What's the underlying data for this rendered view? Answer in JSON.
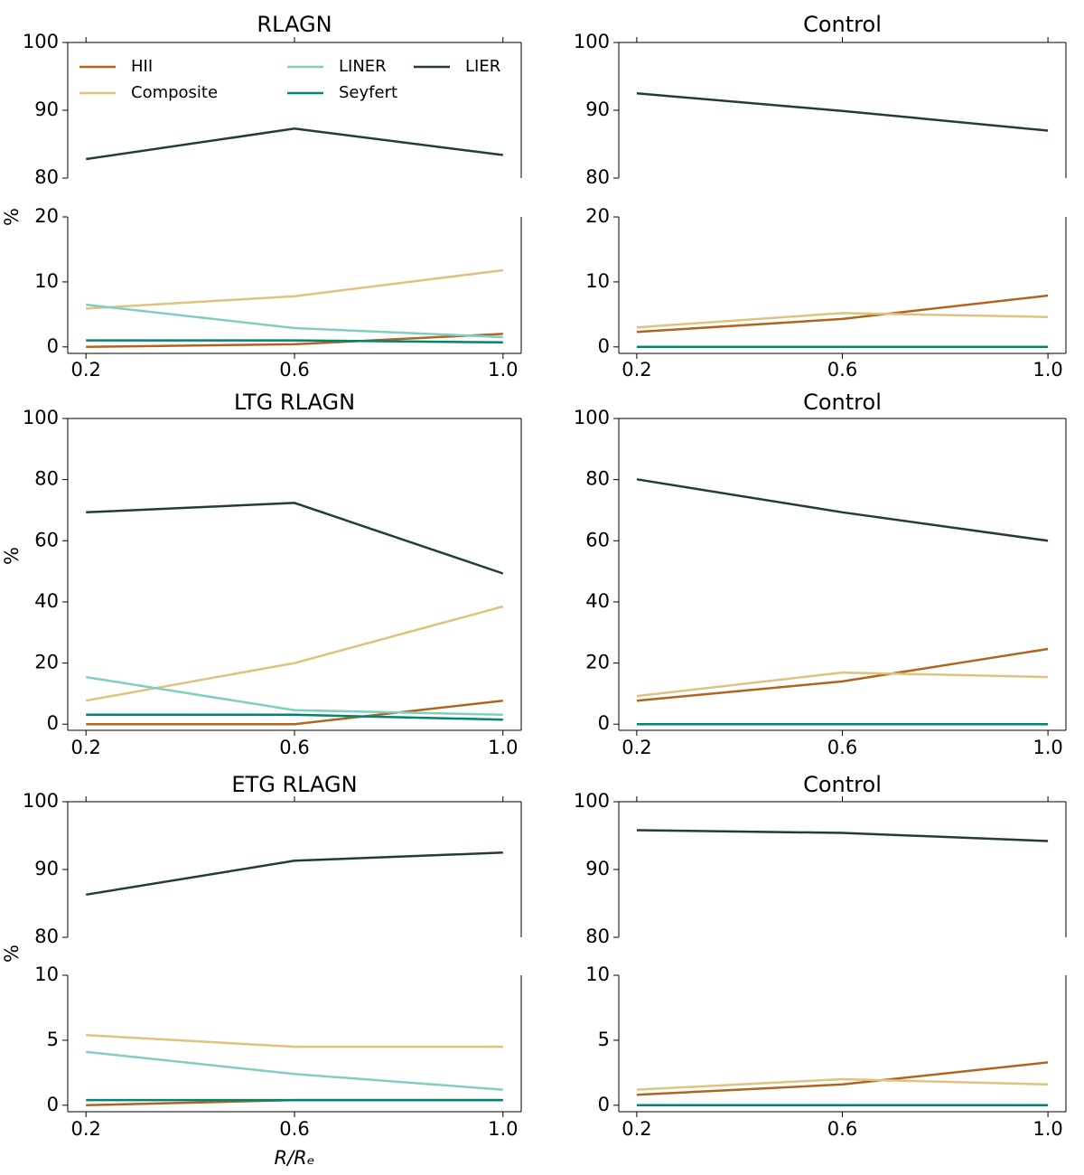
{
  "chart_data": [
    {
      "type": "line",
      "title": "RLAGN",
      "ylabel": "%",
      "legend": "upper left",
      "broken_axis": true,
      "x": [
        0.2,
        0.6,
        1.0
      ],
      "xlim": [
        0.165,
        1.035
      ],
      "xticks": [
        0.2,
        0.6,
        {
          "value": 1.0,
          "label": "1.0"
        }
      ],
      "ylim": [
        -1,
        20
      ],
      "yticks": [
        0,
        10,
        20
      ],
      "y2lim": [
        80,
        100
      ],
      "y2ticks": [
        80,
        90,
        100
      ],
      "series": [
        {
          "name": "HII",
          "color": "#b0651e",
          "values": [
            0.0,
            0.4,
            2.0
          ]
        },
        {
          "name": "Composite",
          "color": "#dfc27d",
          "values": [
            5.9,
            7.8,
            11.8
          ]
        },
        {
          "name": "LINER",
          "color": "#80cdc1",
          "values": [
            6.5,
            2.9,
            1.5
          ]
        },
        {
          "name": "Seyfert",
          "color": "#018571",
          "values": [
            1.0,
            1.0,
            0.7
          ]
        },
        {
          "name": "LIER",
          "color": "#233d36",
          "axis": "y2",
          "values": [
            82.8,
            87.3,
            83.4
          ]
        }
      ]
    },
    {
      "type": "line",
      "title": "Control",
      "broken_axis": true,
      "x": [
        0.2,
        0.6,
        1.0
      ],
      "xlim": [
        0.165,
        1.035
      ],
      "xticks": [
        0.2,
        0.6,
        {
          "value": 1.0,
          "label": "1.0"
        }
      ],
      "ylim": [
        -1,
        20
      ],
      "yticks": [
        0,
        10,
        20
      ],
      "y2lim": [
        80,
        100
      ],
      "y2ticks": [
        80,
        90,
        100
      ],
      "series": [
        {
          "color": "#b0651e",
          "values": [
            2.3,
            4.3,
            7.9
          ]
        },
        {
          "color": "#dfc27d",
          "values": [
            3.0,
            5.2,
            4.6
          ]
        },
        {
          "color": "#80cdc1",
          "values": [
            0,
            0,
            0
          ]
        },
        {
          "color": "#018571",
          "values": [
            0,
            0,
            0
          ]
        },
        {
          "color": "#233d36",
          "axis": "y2",
          "values": [
            92.5,
            89.9,
            87.0
          ]
        }
      ]
    },
    {
      "type": "line",
      "title": "LTG RLAGN",
      "ylabel": "%",
      "x": [
        0.2,
        0.6,
        1.0
      ],
      "xlim": [
        0.165,
        1.035
      ],
      "xticks": [
        0.2,
        0.6,
        {
          "value": 1.0,
          "label": "1.0"
        }
      ],
      "ylim": [
        -2,
        100
      ],
      "yticks": [
        0,
        20,
        40,
        60,
        80,
        100
      ],
      "series": [
        {
          "color": "#b0651e",
          "values": [
            0,
            0,
            7.7
          ]
        },
        {
          "color": "#dfc27d",
          "values": [
            7.7,
            20.0,
            38.5
          ]
        },
        {
          "color": "#80cdc1",
          "values": [
            15.4,
            4.6,
            3.1
          ]
        },
        {
          "color": "#018571",
          "values": [
            3.1,
            3.1,
            1.5
          ]
        },
        {
          "color": "#233d36",
          "values": [
            69.3,
            72.4,
            49.3
          ]
        }
      ]
    },
    {
      "type": "line",
      "title": "Control",
      "x": [
        0.2,
        0.6,
        1.0
      ],
      "xlim": [
        0.165,
        1.035
      ],
      "xticks": [
        0.2,
        0.6,
        {
          "value": 1.0,
          "label": "1.0"
        }
      ],
      "ylim": [
        -2,
        100
      ],
      "yticks": [
        0,
        20,
        40,
        60,
        80,
        100
      ],
      "series": [
        {
          "color": "#b0651e",
          "values": [
            7.7,
            14.0,
            24.6
          ]
        },
        {
          "color": "#dfc27d",
          "values": [
            9.2,
            16.9,
            15.4
          ]
        },
        {
          "color": "#80cdc1",
          "values": [
            0,
            0,
            0
          ]
        },
        {
          "color": "#018571",
          "values": [
            0,
            0,
            0
          ]
        },
        {
          "color": "#233d36",
          "values": [
            80.1,
            69.3,
            60.0
          ]
        }
      ]
    },
    {
      "type": "line",
      "title": "ETG RLAGN",
      "ylabel": "%",
      "xlabel": "R/Rₑ",
      "broken_axis": true,
      "x": [
        0.2,
        0.6,
        1.0
      ],
      "xlim": [
        0.165,
        1.035
      ],
      "xticks": [
        0.2,
        0.6,
        {
          "value": 1.0,
          "label": "1.0"
        }
      ],
      "ylim": [
        -0.5,
        10
      ],
      "yticks": [
        0,
        5,
        10
      ],
      "y2lim": [
        80,
        100
      ],
      "y2ticks": [
        80,
        90,
        100
      ],
      "series": [
        {
          "color": "#b0651e",
          "values": [
            0.0,
            0.4,
            0.4
          ]
        },
        {
          "color": "#dfc27d",
          "values": [
            5.4,
            4.5,
            4.5
          ]
        },
        {
          "color": "#80cdc1",
          "values": [
            4.1,
            2.4,
            1.2
          ]
        },
        {
          "color": "#018571",
          "values": [
            0.4,
            0.4,
            0.4
          ]
        },
        {
          "color": "#233d36",
          "axis": "y2",
          "values": [
            86.3,
            91.3,
            92.5
          ]
        }
      ]
    },
    {
      "type": "line",
      "title": "Control",
      "broken_axis": true,
      "x": [
        0.2,
        0.6,
        1.0
      ],
      "xlim": [
        0.165,
        1.035
      ],
      "xticks": [
        0.2,
        0.6,
        {
          "value": 1.0,
          "label": "1.0"
        }
      ],
      "ylim": [
        -0.5,
        10
      ],
      "yticks": [
        0,
        5,
        10
      ],
      "y2lim": [
        80,
        100
      ],
      "y2ticks": [
        80,
        90,
        100
      ],
      "series": [
        {
          "color": "#b0651e",
          "values": [
            0.8,
            1.6,
            3.3
          ]
        },
        {
          "color": "#dfc27d",
          "values": [
            1.2,
            2.0,
            1.6
          ]
        },
        {
          "color": "#80cdc1",
          "values": [
            0,
            0,
            0
          ]
        },
        {
          "color": "#018571",
          "values": [
            0,
            0,
            0
          ]
        },
        {
          "color": "#233d36",
          "axis": "y2",
          "values": [
            95.8,
            95.4,
            94.2
          ]
        }
      ]
    }
  ]
}
